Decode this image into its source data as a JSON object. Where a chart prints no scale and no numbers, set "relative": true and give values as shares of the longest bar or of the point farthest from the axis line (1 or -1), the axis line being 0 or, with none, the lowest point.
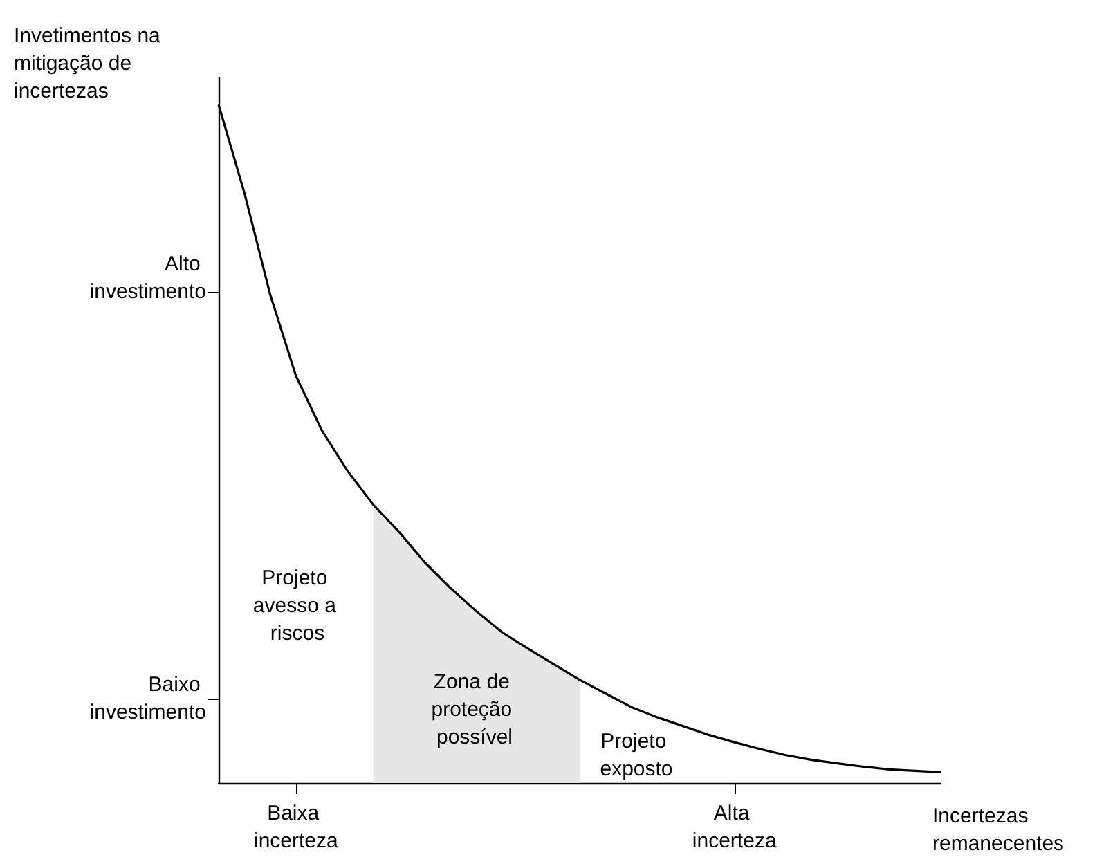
{
  "chart_data": {
    "type": "line",
    "relative": true,
    "xlabel": "Incertezas remanecentes",
    "ylabel": "Invetimentos na mitigação de incertezas",
    "categories": [
      null,
      null,
      null,
      "Baixa incerteza",
      null,
      null,
      null,
      null,
      null,
      null,
      null,
      null,
      null,
      null,
      null,
      null,
      null,
      null,
      null,
      null,
      "Alta incerteza",
      null,
      null,
      null,
      null,
      null,
      null,
      null,
      null
    ],
    "grid": false,
    "marker": "none",
    "line_style": "solid",
    "series": [
      {
        "type": "area",
        "color": "#e6e6e6",
        "values": [
          null,
          null,
          null,
          null,
          null,
          null,
          0.41,
          0.37,
          0.325,
          0.287,
          0.253,
          0.222,
          0.198,
          0.175,
          0.152,
          null,
          null,
          null,
          null,
          null,
          null,
          null,
          null,
          null,
          null,
          null,
          null,
          null,
          null
        ]
      },
      {
        "type": "line",
        "color": "#000000",
        "values": [
          1,
          0.87,
          0.72,
          0.6,
          0.52,
          0.46,
          0.41,
          0.37,
          0.325,
          0.287,
          0.253,
          0.222,
          0.198,
          0.175,
          0.152,
          0.132,
          0.112,
          0.097,
          0.084,
          0.071,
          0.06,
          0.05,
          0.041,
          0.034,
          0.029,
          0.024,
          0.02,
          0.018,
          0.016
        ]
      }
    ],
    "annotations": [
      "Alto investimento",
      "Baixo investimento",
      "Projeto avesso a riscos",
      "Zona de proteção possível",
      "Projeto exposto"
    ]
  }
}
